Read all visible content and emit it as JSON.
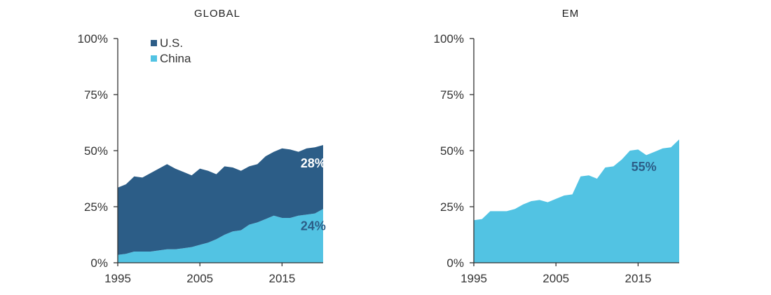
{
  "colors": {
    "us": "#2c5d87",
    "china": "#52c3e3",
    "axis": "#333333",
    "annotation_light": "#ffffff",
    "annotation_dark": "#2c5d87"
  },
  "chart_data": [
    {
      "type": "area",
      "title": "GLOBAL",
      "xlim": [
        1995,
        2020
      ],
      "ylim": [
        0,
        100
      ],
      "x_ticks": [
        1995,
        2005,
        2015
      ],
      "x_tick_labels": [
        "1995",
        "2005",
        "2015"
      ],
      "y_ticks": [
        0,
        25,
        50,
        75,
        100
      ],
      "y_tick_labels": [
        "0%",
        "25%",
        "50%",
        "75%",
        "100%"
      ],
      "stacked": true,
      "legend": {
        "position": "top-left",
        "entries": [
          "U.S.",
          "China"
        ]
      },
      "grid": false,
      "x": [
        1995,
        1996,
        1997,
        1998,
        1999,
        2000,
        2001,
        2002,
        2003,
        2004,
        2005,
        2006,
        2007,
        2008,
        2009,
        2010,
        2011,
        2012,
        2013,
        2014,
        2015,
        2016,
        2017,
        2018,
        2019,
        2020
      ],
      "series": [
        {
          "name": "China",
          "color_key": "china",
          "values": [
            3.5,
            4,
            5,
            5,
            5,
            5.5,
            6,
            6,
            6.5,
            7,
            8,
            9,
            10.5,
            12.5,
            14,
            14.5,
            17,
            18,
            19.5,
            21,
            20,
            20,
            21,
            21.5,
            22,
            24
          ]
        },
        {
          "name": "U.S.",
          "color_key": "us",
          "values": [
            30,
            31,
            33.5,
            33,
            35,
            36.5,
            38,
            36,
            34,
            32,
            34,
            32,
            29,
            30.5,
            28.5,
            26.5,
            26,
            26,
            28,
            28.5,
            31,
            30.5,
            28.5,
            29.5,
            29.5,
            28.5
          ]
        }
      ],
      "annotations": [
        {
          "text": "28%",
          "x": 2018.8,
          "y": 42.5,
          "color_key": "annotation_light"
        },
        {
          "text": "24%",
          "x": 2018.8,
          "y": 14.5,
          "color_key": "annotation_dark"
        }
      ]
    },
    {
      "type": "area",
      "title": "EM",
      "xlim": [
        1995,
        2020
      ],
      "ylim": [
        0,
        100
      ],
      "x_ticks": [
        1995,
        2005,
        2015
      ],
      "x_tick_labels": [
        "1995",
        "2005",
        "2015"
      ],
      "y_ticks": [
        0,
        25,
        50,
        75,
        100
      ],
      "y_tick_labels": [
        "0%",
        "25%",
        "50%",
        "75%",
        "100%"
      ],
      "stacked": false,
      "grid": false,
      "x": [
        1995,
        1996,
        1997,
        1998,
        1999,
        2000,
        2001,
        2002,
        2003,
        2004,
        2005,
        2006,
        2007,
        2008,
        2009,
        2010,
        2011,
        2012,
        2013,
        2014,
        2015,
        2016,
        2017,
        2018,
        2019,
        2020
      ],
      "series": [
        {
          "name": "China",
          "color_key": "china",
          "values": [
            19,
            19.5,
            23,
            23,
            23,
            24,
            26,
            27.5,
            28,
            27,
            28.5,
            30,
            30.5,
            38.5,
            39,
            37.5,
            42.5,
            43,
            46,
            50,
            50.5,
            48,
            49.5,
            51,
            51.5,
            55
          ]
        }
      ],
      "annotations": [
        {
          "text": "55%",
          "x": 2015.7,
          "y": 41,
          "color_key": "annotation_dark"
        }
      ]
    }
  ]
}
